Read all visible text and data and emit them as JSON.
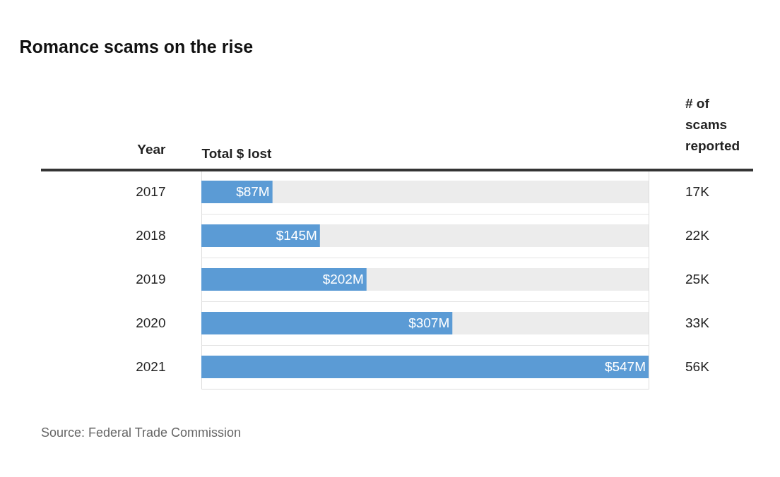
{
  "chart_data": {
    "type": "bar",
    "orientation": "horizontal",
    "title": "Romance scams on the rise",
    "ylabel": "Year",
    "xlabel": "Total $ lost",
    "categories": [
      "2017",
      "2018",
      "2019",
      "2020",
      "2021"
    ],
    "values": [
      87,
      145,
      202,
      307,
      547
    ],
    "color": "#5b9bd5",
    "value_labels": [
      "$87M",
      "$145M",
      "$202M",
      "$307M",
      "$547M"
    ],
    "xlim": [
      0,
      547
    ],
    "tick_labels": "y",
    "grid": "y",
    "annotations": [
      "# of scams reported",
      "17K",
      "22K",
      "25K",
      "33K",
      "56K",
      "Source: Federal Trade Commission"
    ]
  }
}
